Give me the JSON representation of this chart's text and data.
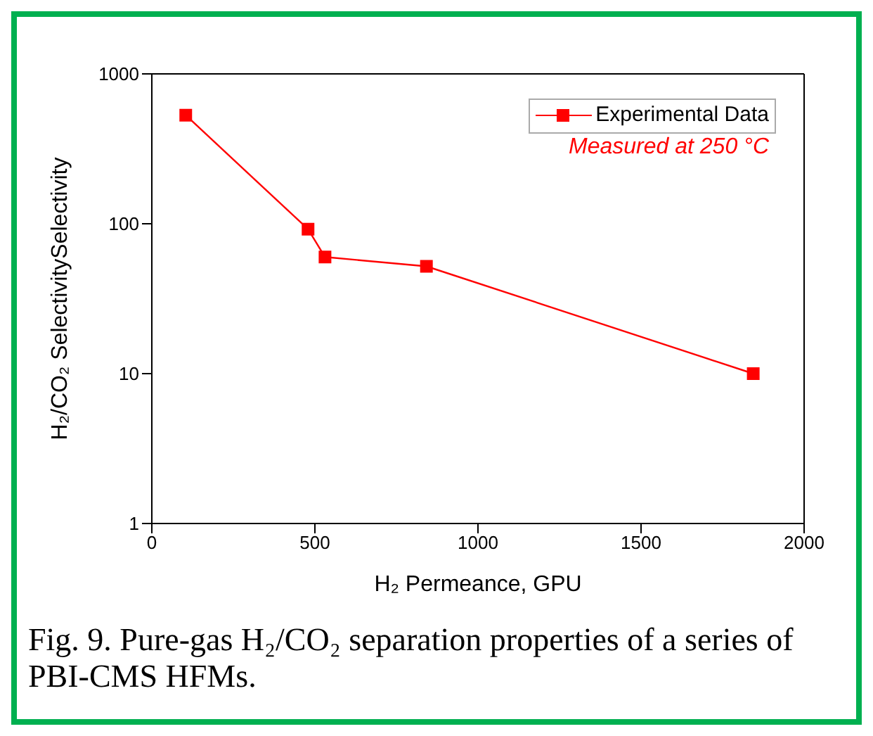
{
  "chart_data": {
    "type": "line",
    "xlabel": "H₂ Permeance, GPU",
    "ylabel": "H₂/CO₂ SelectivitySelectivity",
    "x": [
      104,
      479,
      531,
      842,
      1844
    ],
    "series": [
      {
        "name": "Experimental Data",
        "color": "#ff0000",
        "values": [
          530,
          92,
          60,
          52,
          10
        ]
      }
    ],
    "xlim": [
      0,
      2000
    ],
    "xticks": [
      0,
      500,
      1000,
      1500,
      2000
    ],
    "ylim": [
      1,
      1000
    ],
    "yticks": [
      1,
      10,
      100,
      1000
    ],
    "log": "y",
    "grid": false,
    "legend": "top right",
    "marker": "square",
    "line_style": "solid",
    "annotations": [
      "Measured at 250 °C",
      "Fig. 9. Pure-gas H₂/CO₂ separation properties of a series of PBI-CMS HFMs."
    ]
  }
}
